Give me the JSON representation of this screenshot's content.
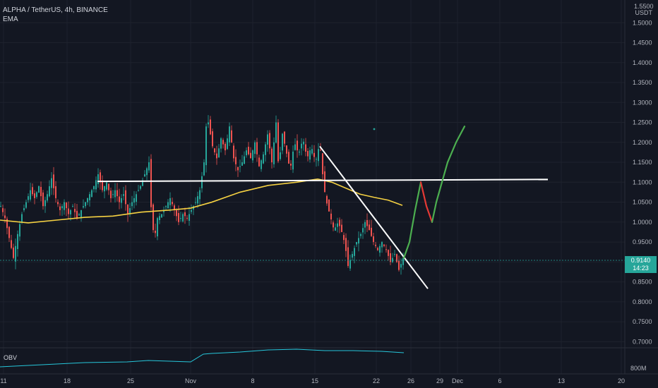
{
  "header": {
    "symbol_line": "ALPHA / TetherUS, 4h, BINANCE",
    "indicator": "EMA"
  },
  "price_axis": {
    "unit_top": "1.5500",
    "unit": "USDT",
    "current_price": "0.9140",
    "countdown": "14:23"
  },
  "obv": {
    "label": "OBV",
    "axis_label": "800M"
  },
  "chart_data": {
    "type": "candlestick",
    "ylim": [
      0.69,
      1.55
    ],
    "y_ticks": [
      "1.5000",
      "1.4500",
      "1.4000",
      "1.3500",
      "1.3000",
      "1.2500",
      "1.2000",
      "1.1500",
      "1.1000",
      "1.0500",
      "1.0000",
      "0.9500",
      "0.9000",
      "0.8500",
      "0.8000",
      "0.7500",
      "0.7000"
    ],
    "x_ticks": [
      "11",
      "18",
      "25",
      "Nov",
      "8",
      "15",
      "22",
      "26",
      "29",
      "Dec",
      "6",
      "13",
      "20"
    ],
    "price_path": [
      [
        0,
        1.04
      ],
      [
        6,
        1.01
      ],
      [
        12,
        0.96
      ],
      [
        18,
        0.91
      ],
      [
        24,
        0.97
      ],
      [
        30,
        1.02
      ],
      [
        36,
        1.05
      ],
      [
        42,
        1.08
      ],
      [
        48,
        1.06
      ],
      [
        54,
        1.09
      ],
      [
        60,
        1.04
      ],
      [
        66,
        1.07
      ],
      [
        72,
        1.11
      ],
      [
        78,
        1.06
      ],
      [
        84,
        1.03
      ],
      [
        90,
        1.05
      ],
      [
        96,
        1.02
      ],
      [
        102,
        1.04
      ],
      [
        108,
        1.01
      ],
      [
        114,
        1.03
      ],
      [
        120,
        1.05
      ],
      [
        126,
        1.07
      ],
      [
        132,
        1.09
      ],
      [
        138,
        1.12
      ],
      [
        144,
        1.08
      ],
      [
        150,
        1.1
      ],
      [
        156,
        1.06
      ],
      [
        162,
        1.08
      ],
      [
        168,
        1.05
      ],
      [
        174,
        1.07
      ],
      [
        180,
        1.02
      ],
      [
        186,
        1.05
      ],
      [
        192,
        1.07
      ],
      [
        198,
        1.09
      ],
      [
        204,
        1.12
      ],
      [
        210,
        1.15
      ],
      [
        214,
        1.0
      ],
      [
        218,
        0.96
      ],
      [
        222,
        1.01
      ],
      [
        228,
        1.02
      ],
      [
        234,
        1.04
      ],
      [
        240,
        1.06
      ],
      [
        246,
        1.03
      ],
      [
        252,
        1.0
      ],
      [
        258,
        1.02
      ],
      [
        264,
        1.01
      ],
      [
        270,
        1.03
      ],
      [
        276,
        1.05
      ],
      [
        282,
        1.08
      ],
      [
        288,
        1.15
      ],
      [
        292,
        1.27
      ],
      [
        296,
        1.23
      ],
      [
        300,
        1.19
      ],
      [
        306,
        1.16
      ],
      [
        312,
        1.21
      ],
      [
        318,
        1.18
      ],
      [
        324,
        1.24
      ],
      [
        330,
        1.16
      ],
      [
        336,
        1.13
      ],
      [
        342,
        1.15
      ],
      [
        348,
        1.18
      ],
      [
        354,
        1.16
      ],
      [
        360,
        1.2
      ],
      [
        366,
        1.14
      ],
      [
        372,
        1.17
      ],
      [
        378,
        1.22
      ],
      [
        384,
        1.15
      ],
      [
        390,
        1.25
      ],
      [
        394,
        1.12
      ],
      [
        398,
        1.23
      ],
      [
        404,
        1.18
      ],
      [
        410,
        1.13
      ],
      [
        416,
        1.2
      ],
      [
        422,
        1.17
      ],
      [
        428,
        1.21
      ],
      [
        434,
        1.16
      ],
      [
        440,
        1.19
      ],
      [
        446,
        1.15
      ],
      [
        452,
        1.2
      ],
      [
        456,
        1.12
      ],
      [
        460,
        1.06
      ],
      [
        466,
        1.02
      ],
      [
        472,
        0.98
      ],
      [
        478,
        1.0
      ],
      [
        484,
        0.97
      ],
      [
        488,
        0.94
      ],
      [
        492,
        0.89
      ],
      [
        498,
        0.92
      ],
      [
        504,
        0.95
      ],
      [
        510,
        0.97
      ],
      [
        516,
        1.0
      ],
      [
        522,
        0.98
      ],
      [
        528,
        0.95
      ],
      [
        534,
        0.93
      ],
      [
        540,
        0.95
      ],
      [
        546,
        0.93
      ],
      [
        552,
        0.9
      ],
      [
        558,
        0.92
      ],
      [
        564,
        0.88
      ],
      [
        570,
        0.91
      ]
    ],
    "ema_path": [
      [
        0,
        1.005
      ],
      [
        40,
        0.998
      ],
      [
        80,
        1.005
      ],
      [
        120,
        1.012
      ],
      [
        160,
        1.015
      ],
      [
        200,
        1.025
      ],
      [
        240,
        1.03
      ],
      [
        270,
        1.035
      ],
      [
        300,
        1.05
      ],
      [
        340,
        1.075
      ],
      [
        380,
        1.092
      ],
      [
        420,
        1.1
      ],
      [
        450,
        1.108
      ],
      [
        470,
        1.1
      ],
      [
        490,
        1.085
      ],
      [
        510,
        1.07
      ],
      [
        530,
        1.062
      ],
      [
        550,
        1.055
      ],
      [
        570,
        1.042
      ]
    ],
    "projection_path": [
      [
        572,
        0.91
      ],
      [
        580,
        0.95
      ],
      [
        588,
        1.03
      ],
      [
        596,
        1.1
      ],
      [
        604,
        1.04
      ],
      [
        612,
        1.0
      ],
      [
        618,
        1.05
      ],
      [
        626,
        1.1
      ],
      [
        634,
        1.15
      ],
      [
        646,
        1.2
      ],
      [
        658,
        1.24
      ]
    ],
    "trend_line": [
      [
        453,
        1.19
      ],
      [
        606,
        0.833
      ]
    ],
    "resistance_line": [
      [
        138,
        1.102
      ],
      [
        776,
        1.107
      ]
    ],
    "obv_path": [
      [
        0,
        522
      ],
      [
        60,
        519
      ],
      [
        120,
        516
      ],
      [
        180,
        515
      ],
      [
        210,
        513
      ],
      [
        240,
        514
      ],
      [
        270,
        515
      ],
      [
        288,
        504
      ],
      [
        300,
        503
      ],
      [
        340,
        501
      ],
      [
        380,
        498
      ],
      [
        420,
        497
      ],
      [
        460,
        499
      ],
      [
        500,
        499
      ],
      [
        540,
        500
      ],
      [
        572,
        502
      ]
    ]
  }
}
